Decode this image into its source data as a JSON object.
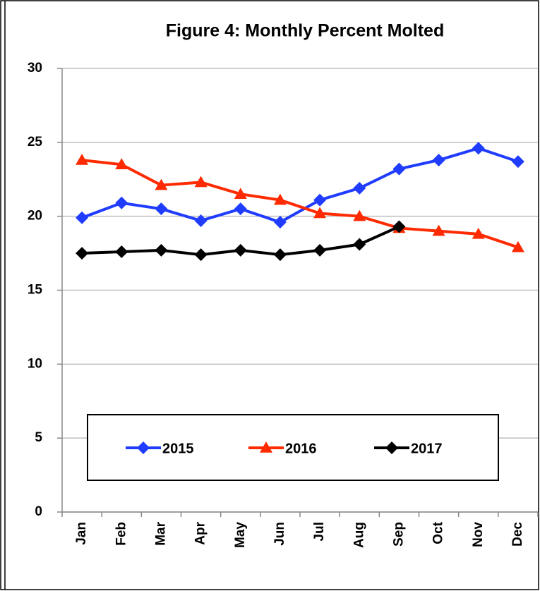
{
  "chart_data": {
    "type": "line",
    "title": "Figure 4: Monthly Percent Molted",
    "categories": [
      "Jan",
      "Feb",
      "Mar",
      "Apr",
      "May",
      "Jun",
      "Jul",
      "Aug",
      "Sep",
      "Oct",
      "Nov",
      "Dec"
    ],
    "series": [
      {
        "name": "2015",
        "color": "#1f3cff",
        "marker": "diamond",
        "values": [
          19.9,
          20.9,
          20.5,
          19.7,
          20.5,
          19.6,
          21.1,
          21.9,
          23.2,
          23.8,
          24.6,
          23.7
        ]
      },
      {
        "name": "2016",
        "color": "#ff2a00",
        "marker": "triangle",
        "values": [
          23.8,
          23.5,
          22.1,
          22.3,
          21.5,
          21.1,
          20.2,
          20.0,
          19.2,
          19.0,
          18.8,
          17.9
        ]
      },
      {
        "name": "2017",
        "color": "#000000",
        "marker": "diamond",
        "values": [
          17.5,
          17.6,
          17.7,
          17.4,
          17.7,
          17.4,
          17.7,
          18.1,
          19.3,
          null,
          null,
          null
        ]
      }
    ],
    "ylim": [
      0,
      30
    ],
    "yticks": [
      0,
      5,
      10,
      15,
      20,
      25,
      30
    ],
    "grid": true
  }
}
